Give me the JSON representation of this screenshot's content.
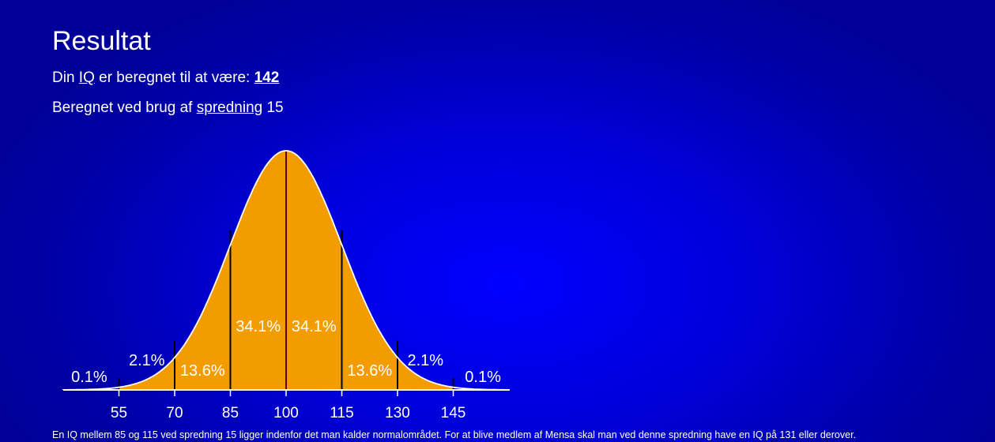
{
  "title": "Resultat",
  "iq_line": {
    "prefix": "Din ",
    "iq_link": "IQ",
    "middle": " er beregnet til at være: ",
    "value": "142"
  },
  "sd_line": {
    "prefix": "Beregnet ved brug af ",
    "link": "spredning",
    "value": " 15"
  },
  "chart_data": {
    "type": "area",
    "title": "",
    "mean": 100,
    "sd": 15,
    "xlim": [
      40,
      160
    ],
    "ticks": [
      "55",
      "70",
      "85",
      "100",
      "115",
      "130",
      "145"
    ],
    "tick_values": [
      55,
      70,
      85,
      100,
      115,
      130,
      145
    ],
    "segment_labels": [
      {
        "text": "0.1%",
        "x": 47
      },
      {
        "text": "2.1%",
        "x": 62.5
      },
      {
        "text": "13.6%",
        "x": 77.5
      },
      {
        "text": "34.1%",
        "x": 92.5
      },
      {
        "text": "34.1%",
        "x": 107.5
      },
      {
        "text": "13.6%",
        "x": 122.5
      },
      {
        "text": "2.1%",
        "x": 137.5
      },
      {
        "text": "0.1%",
        "x": 153
      }
    ],
    "fill_color": "#f39c00",
    "curve_color": "#ffffff"
  },
  "footnote": "En IQ mellem 85 og 115 ved spredning 15 ligger indenfor det man kalder normalområdet. For at blive medlem af Mensa skal man ved denne spredning have en IQ på 131 eller derover."
}
